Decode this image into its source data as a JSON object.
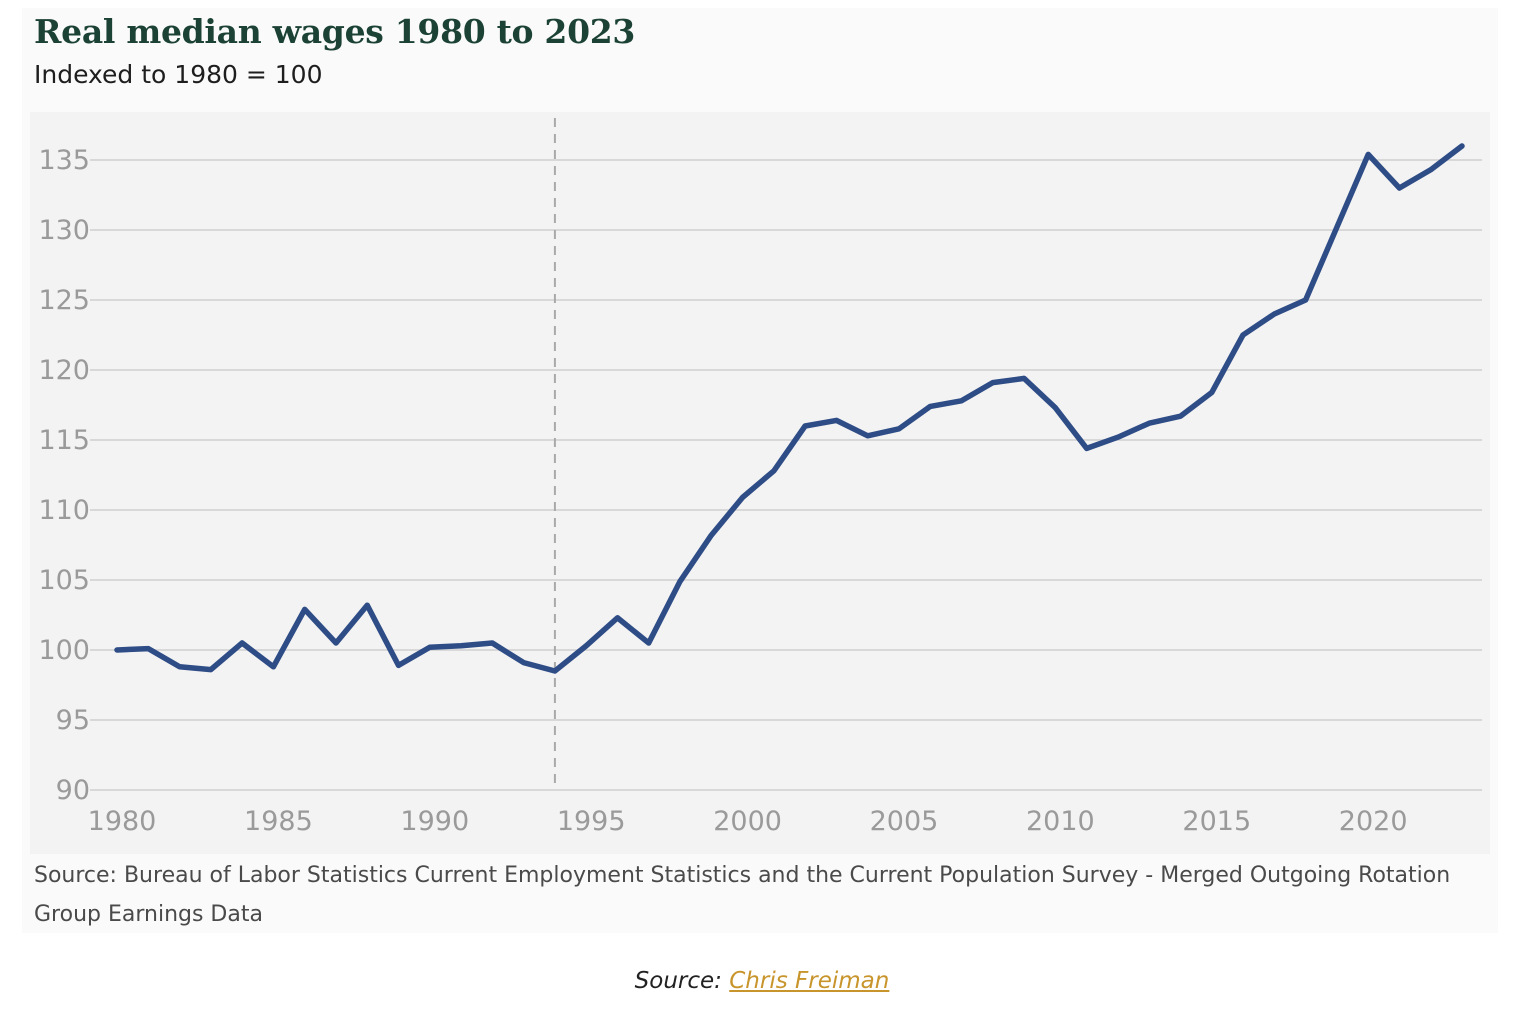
{
  "chart_data": {
    "type": "line",
    "title": "Real median wages 1980 to 2023",
    "subtitle": "Indexed to 1980 = 100",
    "xlabel": "",
    "ylabel": "",
    "xlim": [
      1980,
      2023
    ],
    "ylim": [
      90,
      135
    ],
    "x_ticks": [
      1980,
      1985,
      1990,
      1995,
      2000,
      2005,
      2010,
      2015,
      2020
    ],
    "y_ticks": [
      90,
      95,
      100,
      105,
      110,
      115,
      120,
      125,
      130,
      135
    ],
    "grid": "horizontal",
    "legend": "none",
    "series_color": "#2e4c86",
    "reference_line": {
      "x": 1994,
      "style": "dashed"
    },
    "x": [
      1980,
      1981,
      1982,
      1983,
      1984,
      1985,
      1986,
      1987,
      1988,
      1989,
      1990,
      1991,
      1992,
      1993,
      1994,
      1995,
      1996,
      1997,
      1998,
      1999,
      2000,
      2001,
      2002,
      2003,
      2004,
      2005,
      2006,
      2007,
      2008,
      2009,
      2010,
      2011,
      2012,
      2013,
      2014,
      2015,
      2016,
      2017,
      2018,
      2019,
      2020,
      2021,
      2022,
      2023
    ],
    "series": [
      {
        "values": [
          100.0,
          100.1,
          98.8,
          98.6,
          100.5,
          98.8,
          102.9,
          100.5,
          103.2,
          98.9,
          100.2,
          100.3,
          100.5,
          99.1,
          98.5,
          100.3,
          102.3,
          100.5,
          104.9,
          108.2,
          110.9,
          112.8,
          116.0,
          116.4,
          115.3,
          115.8,
          117.4,
          117.8,
          119.1,
          119.4,
          117.3,
          114.4,
          115.2,
          116.2,
          116.7,
          118.4,
          122.5,
          124.0,
          125.0,
          130.2,
          135.4,
          133.0,
          134.3,
          136.0
        ]
      }
    ],
    "source_note": "Source: Bureau of Labor Statistics Current Employment Statistics and the Current Population Survey - Merged Outgoing Rotation Group Earnings Data"
  },
  "page_source": {
    "prefix": "Source:",
    "link_text": "Chris Freiman"
  }
}
